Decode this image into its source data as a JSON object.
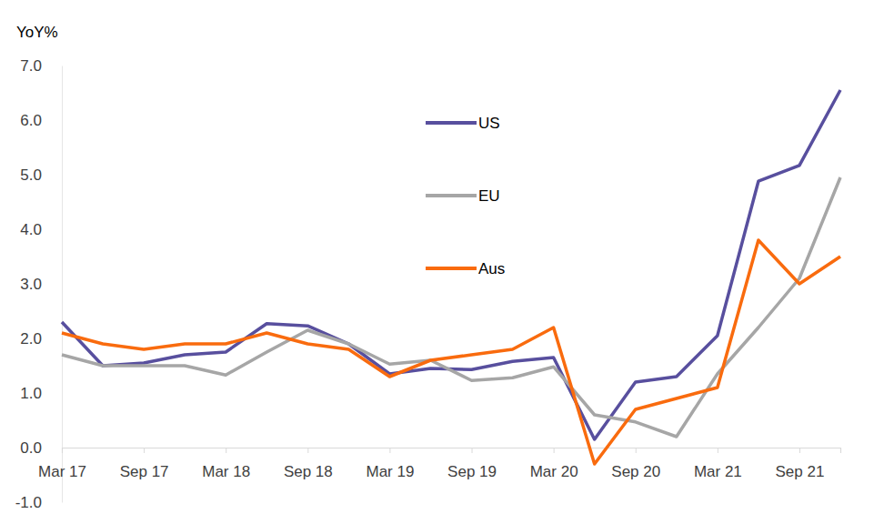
{
  "chart_data": {
    "type": "line",
    "y_label": "YoY%",
    "categories": [
      "Mar 17",
      null,
      "Sep 17",
      null,
      "Mar 18",
      null,
      "Sep 18",
      null,
      "Mar 19",
      null,
      "Sep 19",
      null,
      "Mar 20",
      null,
      "Sep 20",
      null,
      "Mar 21",
      null,
      "Sep 21",
      null
    ],
    "series": [
      {
        "name": "US",
        "color": "#584f9e",
        "values": [
          2.3,
          1.5,
          1.55,
          1.7,
          1.75,
          2.27,
          2.23,
          1.9,
          1.35,
          1.45,
          1.43,
          1.58,
          1.65,
          0.15,
          1.2,
          1.3,
          2.05,
          4.88,
          5.17,
          6.55
        ]
      },
      {
        "name": "EU",
        "color": "#a6a6a6",
        "values": [
          1.7,
          1.5,
          1.5,
          1.5,
          1.33,
          1.75,
          2.15,
          1.9,
          1.53,
          1.6,
          1.23,
          1.28,
          1.48,
          0.6,
          0.47,
          0.2,
          1.35,
          2.2,
          3.1,
          4.95
        ]
      },
      {
        "name": "Aus",
        "color": "#f96b0e",
        "values": [
          2.1,
          1.9,
          1.8,
          1.9,
          1.9,
          2.1,
          1.9,
          1.8,
          1.3,
          1.6,
          1.7,
          1.8,
          2.2,
          -0.3,
          0.7,
          0.9,
          1.1,
          3.8,
          3.0,
          3.5
        ]
      }
    ],
    "ylim": [
      -1,
      7
    ],
    "yticks": [
      {
        "value": -1,
        "label": "-1.0"
      },
      {
        "value": 0,
        "label": "0.0"
      },
      {
        "value": 1,
        "label": "1.0"
      },
      {
        "value": 2,
        "label": "2.0"
      },
      {
        "value": 3,
        "label": "3.0"
      },
      {
        "value": 4,
        "label": "4.0"
      },
      {
        "value": 5,
        "label": "5.0"
      },
      {
        "value": 6,
        "label": "6.0"
      },
      {
        "value": 7,
        "label": "7.0"
      }
    ],
    "grid": false,
    "legend": "top"
  }
}
